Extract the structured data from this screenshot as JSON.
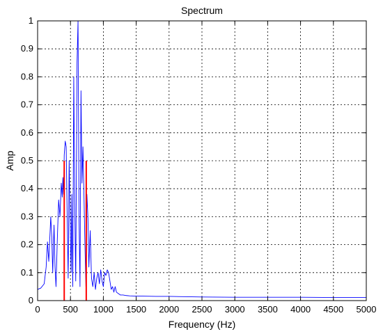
{
  "chart_data": {
    "type": "line",
    "title": "Spectrum",
    "xlabel": "Frequency (Hz)",
    "ylabel": "Amp",
    "xlim": [
      0,
      5000
    ],
    "ylim": [
      0,
      1
    ],
    "xticks": [
      0,
      500,
      1000,
      1500,
      2000,
      2500,
      3000,
      3500,
      4000,
      4500,
      5000
    ],
    "yticks": [
      0,
      0.1,
      0.2,
      0.3,
      0.4,
      0.5,
      0.6,
      0.7,
      0.8,
      0.9,
      1
    ],
    "xtick_labels": [
      "0",
      "500",
      "1000",
      "1500",
      "2000",
      "2500",
      "3000",
      "3500",
      "4000",
      "4500",
      "5000"
    ],
    "ytick_labels": [
      "0",
      "0.1",
      "0.2",
      "0.3",
      "0.4",
      "0.5",
      "0.6",
      "0.7",
      "0.8",
      "0.9",
      "1"
    ],
    "grid": true,
    "series": [
      {
        "color": "#0000ff",
        "x": [
          0,
          50,
          100,
          130,
          150,
          170,
          185,
          200,
          215,
          230,
          250,
          265,
          280,
          300,
          320,
          340,
          360,
          375,
          385,
          395,
          405,
          420,
          435,
          450,
          465,
          480,
          495,
          510,
          520,
          535,
          550,
          565,
          580,
          600,
          615,
          630,
          645,
          660,
          675,
          690,
          705,
          720,
          735,
          750,
          765,
          780,
          800,
          820,
          840,
          860,
          880,
          900,
          920,
          940,
          960,
          980,
          1000,
          1020,
          1040,
          1060,
          1080,
          1100,
          1120,
          1140,
          1160,
          1180,
          1200,
          1230,
          1260,
          1300,
          1350,
          1400,
          1500,
          1600,
          1800,
          2000,
          2500,
          3000,
          3500,
          4000,
          4500,
          5000
        ],
        "y": [
          0.04,
          0.045,
          0.06,
          0.12,
          0.21,
          0.14,
          0.22,
          0.3,
          0.23,
          0.1,
          0.27,
          0.12,
          0.05,
          0.22,
          0.36,
          0.3,
          0.42,
          0.37,
          0.44,
          0.38,
          0.52,
          0.57,
          0.55,
          0.3,
          0.08,
          0.5,
          0.28,
          0.1,
          0.38,
          0.05,
          0.8,
          0.35,
          0.07,
          0.85,
          1.0,
          0.3,
          0.05,
          0.75,
          0.42,
          0.55,
          0.38,
          0.2,
          0.05,
          0.38,
          0.3,
          0.12,
          0.25,
          0.08,
          0.05,
          0.1,
          0.04,
          0.08,
          0.1,
          0.06,
          0.11,
          0.07,
          0.05,
          0.1,
          0.09,
          0.11,
          0.1,
          0.07,
          0.04,
          0.05,
          0.03,
          0.05,
          0.03,
          0.025,
          0.02,
          0.02,
          0.018,
          0.017,
          0.016,
          0.016,
          0.015,
          0.015,
          0.013,
          0.012,
          0.012,
          0.012,
          0.011,
          0.011
        ]
      },
      {
        "color": "#ff0000",
        "x": [
          405,
          740
        ],
        "y": [
          0.5,
          0.5
        ]
      }
    ]
  }
}
